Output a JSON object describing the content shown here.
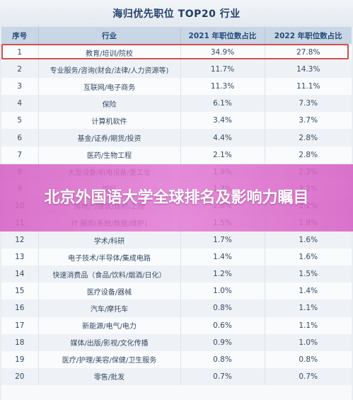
{
  "title": "海归优先职位 TOP20 行业",
  "headers": [
    "序号",
    "行业",
    "2021 年职位数占比",
    "2022 年职位数占比"
  ],
  "rows": [
    {
      "rank": "1",
      "industry": "教育/培训/院校",
      "y2021": "34.9%",
      "y2022": "27.8%"
    },
    {
      "rank": "2",
      "industry": "专业服务/咨询(财会/法律/人力资源等)",
      "y2021": "11.7%",
      "y2022": "14.3%"
    },
    {
      "rank": "3",
      "industry": "互联网/电子商务",
      "y2021": "11.3%",
      "y2022": "11.1%"
    },
    {
      "rank": "4",
      "industry": "保险",
      "y2021": "6.1%",
      "y2022": "7.3%"
    },
    {
      "rank": "5",
      "industry": "计算机软件",
      "y2021": "3.4%",
      "y2022": "3.7%"
    },
    {
      "rank": "6",
      "industry": "基金/证券/期货/投资",
      "y2021": "4.4%",
      "y2022": "2.8%"
    },
    {
      "rank": "7",
      "industry": "医药/生物工程",
      "y2021": "2.1%",
      "y2022": "2.8%"
    },
    {
      "rank": "8",
      "industry": "大型设备/机电设备/重工业",
      "y2021": "1.9%",
      "y2022": "2.3%"
    },
    {
      "rank": "9",
      "industry": "银行",
      "y2021": "1.7%",
      "y2022": "2.2%"
    },
    {
      "rank": "10",
      "industry": "房地产/建筑/建材/工程",
      "y2021": "2.0%",
      "y2022": "2.2%"
    },
    {
      "rank": "11",
      "industry": "IT 服务(系统/数据/维护)",
      "y2021": "1.5%",
      "y2022": "1.8%"
    },
    {
      "rank": "12",
      "industry": "学术/科研",
      "y2021": "1.7%",
      "y2022": "1.6%"
    },
    {
      "rank": "13",
      "industry": "电子技术/半导体/集成电路",
      "y2021": "1.4%",
      "y2022": "1.6%"
    },
    {
      "rank": "14",
      "industry": "快速消费品（食品/饮料/烟酒/日化）",
      "y2021": "1.2%",
      "y2022": "1.5%"
    },
    {
      "rank": "15",
      "industry": "医疗设备/器械",
      "y2021": "1.0%",
      "y2022": "1.4%"
    },
    {
      "rank": "16",
      "industry": "汽车/摩托车",
      "y2021": "0.8%",
      "y2022": "1.1%"
    },
    {
      "rank": "17",
      "industry": "新能源/电气/电力",
      "y2021": "0.6%",
      "y2022": "1.1%"
    },
    {
      "rank": "18",
      "industry": "媒体/出版/影视/文化传播",
      "y2021": "0.9%",
      "y2022": "1.0%"
    },
    {
      "rank": "19",
      "industry": "医疗/护理/美容/保健/卫生服务",
      "y2021": "0.8%",
      "y2022": "0.8%"
    },
    {
      "rank": "20",
      "industry": "零售/批发",
      "y2021": "0.7%",
      "y2022": "0.7%"
    }
  ],
  "banner": "北京外国语大学全球排名及影响力瞩目",
  "colors": {
    "highlight_border": "#d64b4b",
    "banner_bg": "#d660c4",
    "header_bg": "#c9d6e5"
  }
}
